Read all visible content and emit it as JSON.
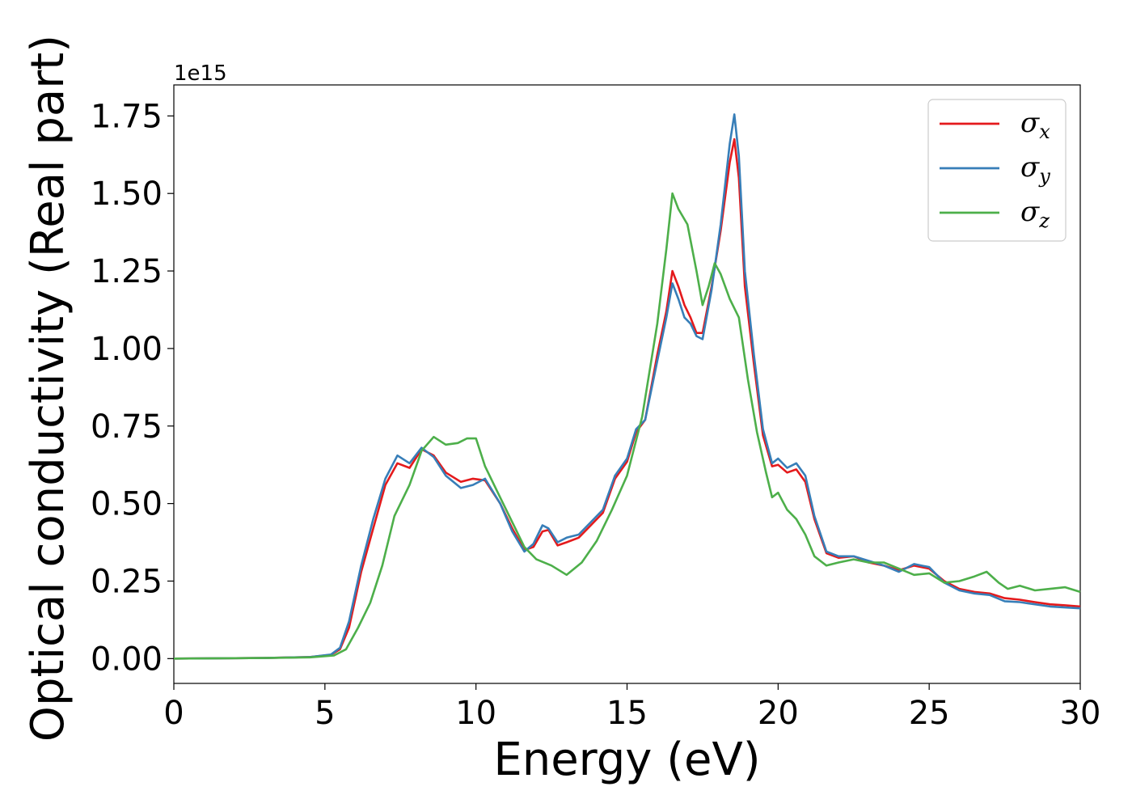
{
  "chart_data": {
    "type": "line",
    "title": "",
    "xlabel": "Energy (eV)",
    "ylabel": "Optical conductivity (Real part)",
    "y_offset_label": "1e15",
    "xlim": [
      0,
      30
    ],
    "ylim": [
      -0.08,
      1.85
    ],
    "x_ticks": [
      0,
      5,
      10,
      15,
      20,
      25,
      30
    ],
    "x_tick_labels": [
      "0",
      "5",
      "10",
      "15",
      "20",
      "25",
      "30"
    ],
    "y_ticks": [
      0,
      0.25,
      0.5,
      0.75,
      1.0,
      1.25,
      1.5,
      1.75
    ],
    "y_tick_labels": [
      "0.00",
      "0.25",
      "0.50",
      "0.75",
      "1.00",
      "1.25",
      "1.50",
      "1.75"
    ],
    "grid": false,
    "legend_position": "top-right",
    "series": [
      {
        "name_symbol": "σ",
        "name_sub": "x",
        "color": "#e41a1c",
        "points": [
          [
            0,
            0
          ],
          [
            3,
            0.002
          ],
          [
            4.5,
            0.005
          ],
          [
            5.2,
            0.012
          ],
          [
            5.5,
            0.03
          ],
          [
            5.8,
            0.1
          ],
          [
            6.2,
            0.28
          ],
          [
            6.6,
            0.42
          ],
          [
            7,
            0.56
          ],
          [
            7.4,
            0.63
          ],
          [
            7.8,
            0.615
          ],
          [
            8.2,
            0.675
          ],
          [
            8.6,
            0.655
          ],
          [
            9,
            0.6
          ],
          [
            9.5,
            0.57
          ],
          [
            9.9,
            0.58
          ],
          [
            10.3,
            0.575
          ],
          [
            10.8,
            0.5
          ],
          [
            11.2,
            0.42
          ],
          [
            11.6,
            0.35
          ],
          [
            11.9,
            0.36
          ],
          [
            12.2,
            0.41
          ],
          [
            12.4,
            0.415
          ],
          [
            12.7,
            0.365
          ],
          [
            13,
            0.375
          ],
          [
            13.4,
            0.39
          ],
          [
            13.8,
            0.43
          ],
          [
            14.2,
            0.47
          ],
          [
            14.6,
            0.58
          ],
          [
            15,
            0.635
          ],
          [
            15.3,
            0.73
          ],
          [
            15.6,
            0.77
          ],
          [
            16,
            0.98
          ],
          [
            16.3,
            1.12
          ],
          [
            16.5,
            1.25
          ],
          [
            16.7,
            1.2
          ],
          [
            16.9,
            1.14
          ],
          [
            17.1,
            1.1
          ],
          [
            17.3,
            1.05
          ],
          [
            17.5,
            1.05
          ],
          [
            17.8,
            1.2
          ],
          [
            18.1,
            1.38
          ],
          [
            18.4,
            1.6
          ],
          [
            18.55,
            1.675
          ],
          [
            18.7,
            1.55
          ],
          [
            18.9,
            1.2
          ],
          [
            19.2,
            0.95
          ],
          [
            19.5,
            0.72
          ],
          [
            19.8,
            0.62
          ],
          [
            20,
            0.625
          ],
          [
            20.3,
            0.6
          ],
          [
            20.6,
            0.61
          ],
          [
            20.9,
            0.57
          ],
          [
            21.2,
            0.45
          ],
          [
            21.6,
            0.34
          ],
          [
            22,
            0.325
          ],
          [
            22.5,
            0.33
          ],
          [
            23,
            0.31
          ],
          [
            23.5,
            0.3
          ],
          [
            24,
            0.285
          ],
          [
            24.5,
            0.3
          ],
          [
            25,
            0.29
          ],
          [
            25.5,
            0.25
          ],
          [
            26,
            0.225
          ],
          [
            26.5,
            0.215
          ],
          [
            27,
            0.21
          ],
          [
            27.5,
            0.195
          ],
          [
            28,
            0.19
          ],
          [
            28.5,
            0.182
          ],
          [
            29,
            0.175
          ],
          [
            29.5,
            0.172
          ],
          [
            30,
            0.168
          ]
        ]
      },
      {
        "name_symbol": "σ",
        "name_sub": "y",
        "color": "#377eb8",
        "points": [
          [
            0,
            0
          ],
          [
            3,
            0.002
          ],
          [
            4.5,
            0.005
          ],
          [
            5.2,
            0.013
          ],
          [
            5.5,
            0.035
          ],
          [
            5.8,
            0.12
          ],
          [
            6.2,
            0.3
          ],
          [
            6.6,
            0.45
          ],
          [
            7,
            0.58
          ],
          [
            7.4,
            0.655
          ],
          [
            7.8,
            0.63
          ],
          [
            8.2,
            0.68
          ],
          [
            8.6,
            0.65
          ],
          [
            9,
            0.59
          ],
          [
            9.5,
            0.55
          ],
          [
            9.9,
            0.56
          ],
          [
            10.3,
            0.58
          ],
          [
            10.8,
            0.5
          ],
          [
            11.2,
            0.41
          ],
          [
            11.6,
            0.345
          ],
          [
            11.9,
            0.37
          ],
          [
            12.2,
            0.43
          ],
          [
            12.4,
            0.42
          ],
          [
            12.7,
            0.375
          ],
          [
            13,
            0.39
          ],
          [
            13.4,
            0.4
          ],
          [
            13.8,
            0.44
          ],
          [
            14.2,
            0.48
          ],
          [
            14.6,
            0.59
          ],
          [
            15,
            0.645
          ],
          [
            15.3,
            0.74
          ],
          [
            15.6,
            0.77
          ],
          [
            16,
            0.96
          ],
          [
            16.3,
            1.1
          ],
          [
            16.5,
            1.21
          ],
          [
            16.7,
            1.16
          ],
          [
            16.9,
            1.1
          ],
          [
            17.1,
            1.08
          ],
          [
            17.3,
            1.04
          ],
          [
            17.5,
            1.03
          ],
          [
            17.8,
            1.19
          ],
          [
            18.1,
            1.4
          ],
          [
            18.4,
            1.66
          ],
          [
            18.55,
            1.755
          ],
          [
            18.7,
            1.62
          ],
          [
            18.9,
            1.25
          ],
          [
            19.2,
            0.98
          ],
          [
            19.5,
            0.74
          ],
          [
            19.8,
            0.63
          ],
          [
            20,
            0.645
          ],
          [
            20.3,
            0.615
          ],
          [
            20.6,
            0.63
          ],
          [
            20.9,
            0.59
          ],
          [
            21.2,
            0.46
          ],
          [
            21.6,
            0.345
          ],
          [
            22,
            0.33
          ],
          [
            22.5,
            0.33
          ],
          [
            23,
            0.315
          ],
          [
            23.5,
            0.3
          ],
          [
            24,
            0.28
          ],
          [
            24.5,
            0.305
          ],
          [
            25,
            0.295
          ],
          [
            25.5,
            0.245
          ],
          [
            26,
            0.22
          ],
          [
            26.5,
            0.21
          ],
          [
            27,
            0.205
          ],
          [
            27.5,
            0.185
          ],
          [
            28,
            0.182
          ],
          [
            28.5,
            0.175
          ],
          [
            29,
            0.168
          ],
          [
            29.5,
            0.165
          ],
          [
            30,
            0.162
          ]
        ]
      },
      {
        "name_symbol": "σ",
        "name_sub": "z",
        "color": "#4daf4a",
        "points": [
          [
            0,
            0
          ],
          [
            3,
            0.002
          ],
          [
            4.5,
            0.004
          ],
          [
            5.3,
            0.01
          ],
          [
            5.7,
            0.03
          ],
          [
            6.1,
            0.1
          ],
          [
            6.5,
            0.18
          ],
          [
            6.9,
            0.3
          ],
          [
            7.3,
            0.46
          ],
          [
            7.8,
            0.56
          ],
          [
            8.2,
            0.67
          ],
          [
            8.6,
            0.715
          ],
          [
            9,
            0.69
          ],
          [
            9.4,
            0.695
          ],
          [
            9.7,
            0.71
          ],
          [
            10,
            0.71
          ],
          [
            10.3,
            0.62
          ],
          [
            10.7,
            0.54
          ],
          [
            11.1,
            0.46
          ],
          [
            11.6,
            0.36
          ],
          [
            12,
            0.32
          ],
          [
            12.5,
            0.3
          ],
          [
            13,
            0.27
          ],
          [
            13.5,
            0.31
          ],
          [
            14,
            0.38
          ],
          [
            14.5,
            0.48
          ],
          [
            15,
            0.59
          ],
          [
            15.5,
            0.78
          ],
          [
            16,
            1.08
          ],
          [
            16.3,
            1.32
          ],
          [
            16.5,
            1.5
          ],
          [
            16.7,
            1.45
          ],
          [
            17,
            1.4
          ],
          [
            17.3,
            1.25
          ],
          [
            17.5,
            1.14
          ],
          [
            17.7,
            1.2
          ],
          [
            17.9,
            1.275
          ],
          [
            18.1,
            1.24
          ],
          [
            18.4,
            1.16
          ],
          [
            18.7,
            1.1
          ],
          [
            19,
            0.9
          ],
          [
            19.3,
            0.73
          ],
          [
            19.6,
            0.6
          ],
          [
            19.8,
            0.52
          ],
          [
            20,
            0.535
          ],
          [
            20.3,
            0.48
          ],
          [
            20.6,
            0.45
          ],
          [
            20.9,
            0.4
          ],
          [
            21.2,
            0.33
          ],
          [
            21.6,
            0.3
          ],
          [
            22,
            0.31
          ],
          [
            22.5,
            0.32
          ],
          [
            23,
            0.31
          ],
          [
            23.5,
            0.31
          ],
          [
            24,
            0.29
          ],
          [
            24.5,
            0.27
          ],
          [
            25,
            0.275
          ],
          [
            25.5,
            0.245
          ],
          [
            26,
            0.25
          ],
          [
            26.5,
            0.265
          ],
          [
            26.9,
            0.28
          ],
          [
            27.3,
            0.245
          ],
          [
            27.6,
            0.225
          ],
          [
            28,
            0.235
          ],
          [
            28.5,
            0.22
          ],
          [
            29,
            0.225
          ],
          [
            29.5,
            0.23
          ],
          [
            30,
            0.215
          ]
        ]
      }
    ]
  }
}
